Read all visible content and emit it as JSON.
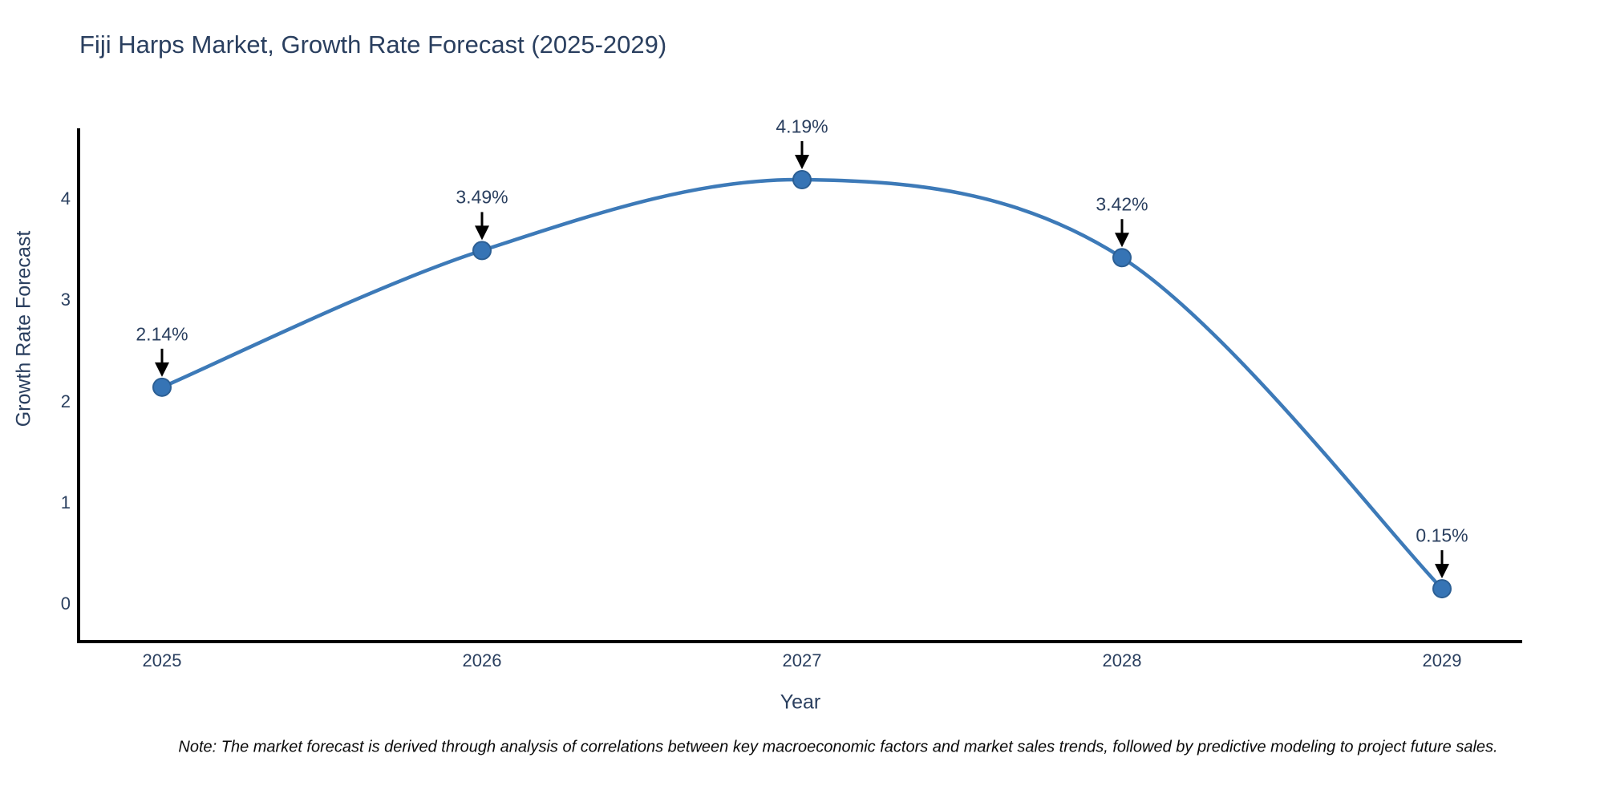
{
  "chart": {
    "title": "Fiji Harps Market, Growth Rate Forecast (2025-2029)",
    "xlabel": "Year",
    "ylabel": "Growth Rate Forecast",
    "note": "Note: The market forecast is derived through analysis of correlations between key macroeconomic factors and market sales trends, followed by predictive modeling to project future sales.",
    "colors": {
      "line": "#3d7ab8",
      "marker_fill": "#3674b5",
      "marker_edge": "#2c5f94",
      "axis_line": "#000000",
      "arrow": "#000000",
      "text": "#2a3f5f",
      "note_text": "#0a0a0a",
      "background": "#ffffff"
    }
  },
  "chart_data": {
    "type": "line",
    "title": "Fiji Harps Market, Growth Rate Forecast (2025-2029)",
    "xlabel": "Year",
    "ylabel": "Growth Rate Forecast",
    "categories": [
      "2025",
      "2026",
      "2027",
      "2028",
      "2029"
    ],
    "x": [
      2025,
      2026,
      2027,
      2028,
      2029
    ],
    "values": [
      2.14,
      3.49,
      4.19,
      3.42,
      0.15
    ],
    "point_labels": [
      "2.14%",
      "3.49%",
      "4.19%",
      "3.42%",
      "0.15%"
    ],
    "yticks": [
      0,
      1,
      2,
      3,
      4
    ],
    "ytick_labels": [
      "0",
      "1",
      "2",
      "3",
      "4"
    ],
    "ylim": [
      -0.4,
      4.8
    ],
    "line_shape": "spline",
    "markers": true,
    "annotations_arrows": true,
    "grid": false,
    "legend": "none"
  }
}
